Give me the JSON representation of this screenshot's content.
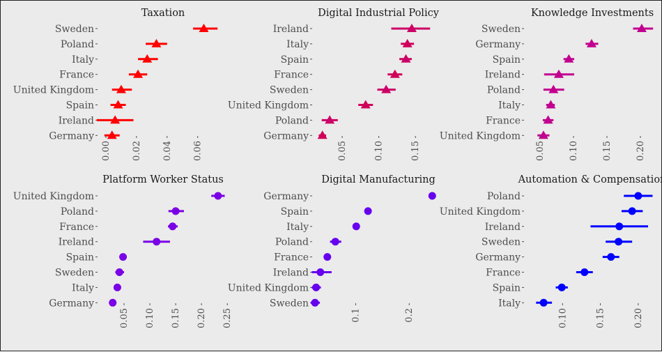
{
  "chart_data": [
    {
      "type": "scatter",
      "title": "Taxation",
      "marker": "triangle",
      "colors": [
        "#ff0000"
      ],
      "xlim": [
        -0.005,
        0.077
      ],
      "xticks": [
        0.0,
        0.02,
        0.04,
        0.06
      ],
      "tick_labels": [
        "0.00",
        "0.02",
        "0.04",
        "0.06"
      ],
      "categories": [
        "Sweden",
        "Poland",
        "Italy",
        "France",
        "United Kingdom",
        "Spain",
        "Ireland",
        "Germany"
      ],
      "values": [
        0.064,
        0.033,
        0.027,
        0.021,
        0.01,
        0.008,
        0.006,
        0.004
      ],
      "ci_low": [
        0.057,
        0.026,
        0.021,
        0.015,
        0.004,
        0.003,
        -0.006,
        -0.001
      ],
      "ci_high": [
        0.073,
        0.04,
        0.034,
        0.027,
        0.017,
        0.013,
        0.018,
        0.009
      ]
    },
    {
      "type": "scatter",
      "title": "Digital Industrial Policy",
      "marker": "triangle",
      "colors": [
        "#cc0066",
        "#d0005a"
      ],
      "xlim": [
        0.01,
        0.185
      ],
      "xticks": [
        0.05,
        0.1,
        0.15
      ],
      "tick_labels": [
        "0.05",
        "0.10",
        "0.15"
      ],
      "categories": [
        "Ireland",
        "Italy",
        "Spain",
        "France",
        "Sweden",
        "United Kingdom",
        "Poland",
        "Germany"
      ],
      "values": [
        0.145,
        0.139,
        0.137,
        0.122,
        0.11,
        0.082,
        0.033,
        0.023
      ],
      "ci_low": [
        0.117,
        0.13,
        0.128,
        0.112,
        0.098,
        0.072,
        0.022,
        0.018
      ],
      "ci_high": [
        0.17,
        0.148,
        0.145,
        0.132,
        0.123,
        0.092,
        0.044,
        0.028
      ]
    },
    {
      "type": "scatter",
      "title": "Knowledge Investments",
      "marker": "triangle",
      "colors": [
        "#c2008f"
      ],
      "xlim": [
        0.027,
        0.225
      ],
      "xticks": [
        0.05,
        0.1,
        0.15,
        0.2
      ],
      "tick_labels": [
        "0.05",
        "0.10",
        "0.15",
        "0.20"
      ],
      "categories": [
        "Sweden",
        "Germany",
        "Spain",
        "Ireland",
        "Poland",
        "Italy",
        "France",
        "United Kingdom"
      ],
      "values": [
        0.202,
        0.127,
        0.093,
        0.078,
        0.07,
        0.066,
        0.062,
        0.055
      ],
      "ci_low": [
        0.189,
        0.118,
        0.085,
        0.056,
        0.055,
        0.059,
        0.054,
        0.046
      ],
      "ci_high": [
        0.219,
        0.137,
        0.101,
        0.101,
        0.086,
        0.072,
        0.07,
        0.064
      ]
    },
    {
      "type": "scatter",
      "title": "Platform Worker Status",
      "marker": "circle",
      "colors": [
        "#7a00e6"
      ],
      "xlim": [
        0.0,
        0.27
      ],
      "xticks": [
        0.05,
        0.1,
        0.15,
        0.2,
        0.25
      ],
      "tick_labels": [
        "0.05",
        "0.10",
        "0.15",
        "0.20",
        "0.25"
      ],
      "categories": [
        "United Kingdom",
        "Poland",
        "France",
        "Ireland",
        "Spain",
        "Sweden",
        "Italy",
        "Germany"
      ],
      "values": [
        0.232,
        0.15,
        0.144,
        0.113,
        0.048,
        0.041,
        0.037,
        0.028
      ],
      "ci_low": [
        0.219,
        0.136,
        0.135,
        0.087,
        0.043,
        0.033,
        0.032,
        0.022
      ],
      "ci_high": [
        0.245,
        0.166,
        0.154,
        0.139,
        0.053,
        0.05,
        0.042,
        0.034
      ]
    },
    {
      "type": "scatter",
      "title": "Digital Manufacturing",
      "marker": "circle",
      "colors": [
        "#6600ee"
      ],
      "xlim": [
        0.02,
        0.27
      ],
      "xticks": [
        0.1,
        0.2
      ],
      "tick_labels": [
        "0.1",
        "0.2"
      ],
      "categories": [
        "Germany",
        "Spain",
        "Italy",
        "Poland",
        "France",
        "Ireland",
        "United Kingdom",
        "Sweden"
      ],
      "values": [
        0.243,
        0.123,
        0.101,
        0.062,
        0.047,
        0.034,
        0.026,
        0.024
      ],
      "ci_low": [
        0.24,
        0.12,
        0.098,
        0.052,
        0.041,
        0.018,
        0.018,
        0.016
      ],
      "ci_high": [
        0.246,
        0.126,
        0.104,
        0.073,
        0.053,
        0.055,
        0.035,
        0.033
      ]
    },
    {
      "type": "scatter",
      "title": "Automation & Compensation",
      "marker": "circle",
      "colors": [
        "#0000ff"
      ],
      "xlim": [
        0.05,
        0.225
      ],
      "xticks": [
        0.1,
        0.15,
        0.2
      ],
      "tick_labels": [
        "0.10",
        "0.15",
        "0.20"
      ],
      "categories": [
        "Poland",
        "United Kingdom",
        "Ireland",
        "Sweden",
        "Germany",
        "France",
        "Spain",
        "Italy"
      ],
      "values": [
        0.2,
        0.192,
        0.175,
        0.174,
        0.164,
        0.129,
        0.099,
        0.075
      ],
      "ci_low": [
        0.181,
        0.178,
        0.137,
        0.157,
        0.153,
        0.118,
        0.091,
        0.065
      ],
      "ci_high": [
        0.219,
        0.206,
        0.213,
        0.192,
        0.175,
        0.14,
        0.107,
        0.086
      ]
    }
  ]
}
